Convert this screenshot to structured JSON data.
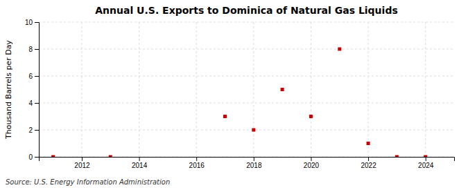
{
  "chart_data": {
    "type": "scatter",
    "title": "Annual U.S. Exports to Dominica of Natural Gas Liquids",
    "y_label": "Thousand Barrels per Day",
    "annotations": [
      "Source: U.S. Energy Information Administration"
    ],
    "x": [
      2011,
      2013,
      2017,
      2018,
      2019,
      2020,
      2021,
      2022,
      2023,
      2024
    ],
    "values": [
      0,
      0,
      3,
      2,
      5,
      3,
      8,
      1,
      0,
      0
    ],
    "color": "#CC0000",
    "marker": "square",
    "xlim": [
      2010.5,
      2025
    ],
    "ylim": [
      0,
      10
    ],
    "xticks": [
      2012,
      2014,
      2016,
      2018,
      2020,
      2022,
      2024
    ],
    "yticks": [
      0,
      2,
      4,
      6,
      8,
      10
    ],
    "grid": true
  }
}
